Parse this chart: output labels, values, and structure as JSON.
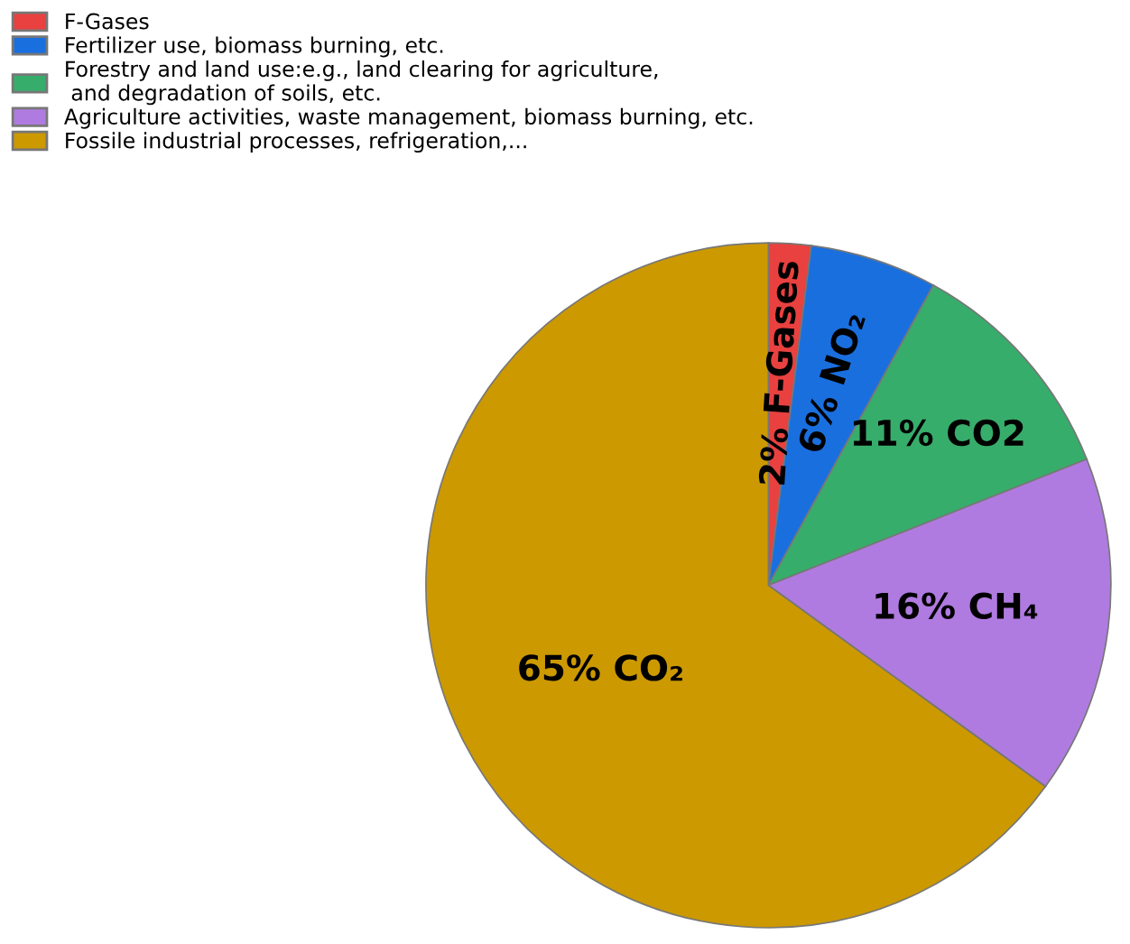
{
  "chart_data": {
    "type": "pie",
    "categories": [
      "F-Gases",
      "Fertilizer use, biomass burning, etc.",
      "Forestry and land use:e.g., land clearing for agriculture,\n and degradation of soils, etc.",
      "Agriculture activities, waste management, biomass burning, etc.",
      "Fossile industrial processes, refrigeration,..."
    ],
    "values": [
      2,
      6,
      11,
      16,
      65
    ],
    "colors": [
      "#e8413f",
      "#1a6fdf",
      "#37ad6b",
      "#b07be0",
      "#cc9900"
    ],
    "value_labels": [
      "2% F-Gases",
      "6% NO₂",
      "11% CO2",
      "16% CH₄",
      "65% CO₂"
    ],
    "legend": "top left"
  }
}
